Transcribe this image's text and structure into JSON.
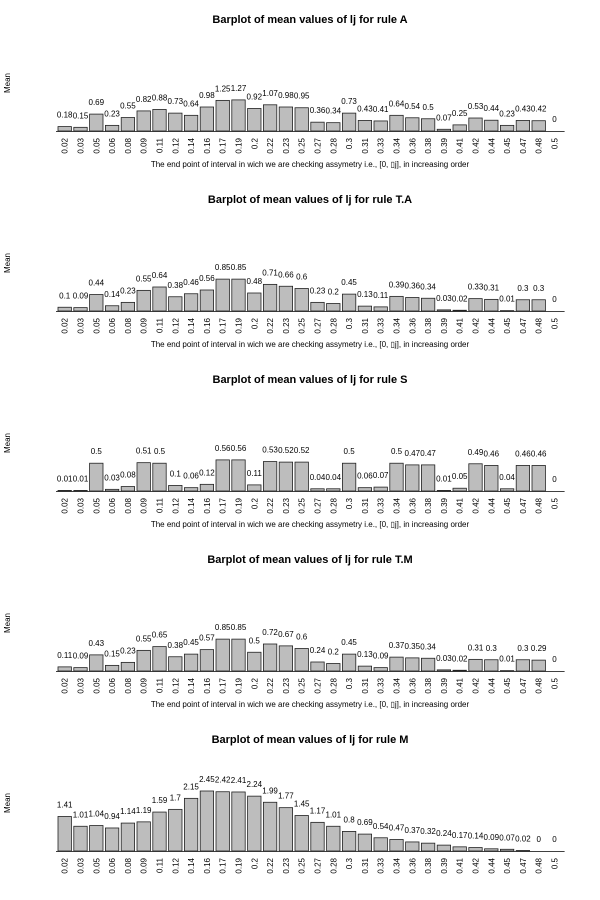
{
  "chart_data": [
    {
      "type": "bar",
      "title": "Barplot of mean values of lj for rule A",
      "ylabel": "Mean",
      "xlabel": "The end point of interval in wich we are checking assymetry i.e., [0, ▯j], in increasing order",
      "categories": [
        "0.02",
        "0.03",
        "0.05",
        "0.06",
        "0.08",
        "0.09",
        "0.11",
        "0.12",
        "0.14",
        "0.16",
        "0.17",
        "0.19",
        "0.2",
        "0.22",
        "0.23",
        "0.25",
        "0.27",
        "0.28",
        "0.3",
        "0.31",
        "0.33",
        "0.34",
        "0.36",
        "0.38",
        "0.39",
        "0.41",
        "0.42",
        "0.44",
        "0.45",
        "0.47",
        "0.48",
        "0.5"
      ],
      "values": [
        0.18,
        0.15,
        0.69,
        0.23,
        0.55,
        0.82,
        0.88,
        0.73,
        0.64,
        0.98,
        1.25,
        1.27,
        0.92,
        1.07,
        0.98,
        0.95,
        0.36,
        0.34,
        0.73,
        0.43,
        0.41,
        0.64,
        0.54,
        0.5,
        0.07,
        0.25,
        0.53,
        0.44,
        0.23,
        0.43,
        0.42,
        0
      ],
      "labels": [
        "0.18",
        "0.15",
        "0.69",
        "0.23",
        "0.55",
        "0.82",
        "0.88",
        "0.73",
        "0.64",
        "0.98",
        "1.25",
        "1.27",
        "0.92",
        "1.07",
        "0.98",
        "0.95",
        "0.36",
        "0.34",
        "0.73",
        "0.43",
        "0.41",
        "0.64",
        "0.54",
        "0.5",
        "0.07",
        "0.25",
        "0.53",
        "0.44",
        "0.23",
        "0.43",
        "0.42",
        "0"
      ],
      "ylim": [
        0,
        2.45
      ]
    },
    {
      "type": "bar",
      "title": "Barplot of mean values of lj for rule T.A",
      "ylabel": "Mean",
      "xlabel": "The end point of interval in wich we are checking assymetry i.e., [0, ▯j], in increasing order",
      "categories": [
        "0.02",
        "0.03",
        "0.05",
        "0.06",
        "0.08",
        "0.09",
        "0.11",
        "0.12",
        "0.14",
        "0.16",
        "0.17",
        "0.19",
        "0.2",
        "0.22",
        "0.23",
        "0.25",
        "0.27",
        "0.28",
        "0.3",
        "0.31",
        "0.33",
        "0.34",
        "0.36",
        "0.38",
        "0.39",
        "0.41",
        "0.42",
        "0.44",
        "0.45",
        "0.47",
        "0.48",
        "0.5"
      ],
      "values": [
        0.1,
        0.09,
        0.44,
        0.14,
        0.23,
        0.55,
        0.64,
        0.38,
        0.46,
        0.56,
        0.85,
        0.85,
        0.48,
        0.71,
        0.66,
        0.6,
        0.23,
        0.2,
        0.45,
        0.13,
        0.11,
        0.39,
        0.36,
        0.34,
        0.03,
        0.02,
        0.33,
        0.31,
        0.01,
        0.3,
        0.3,
        0
      ],
      "labels": [
        "0.1",
        "0.09",
        "0.44",
        "0.14",
        "0.23",
        "0.55",
        "0.64",
        "0.38",
        "0.46",
        "0.56",
        "0.85",
        "0.85",
        "0.48",
        "0.71",
        "0.66",
        "0.6",
        "0.23",
        "0.2",
        "0.45",
        "0.13",
        "0.11",
        "0.39",
        "0.36",
        "0.34",
        "0.03",
        "0.02",
        "0.33",
        "0.31",
        "0.01",
        "0.3",
        "0.3",
        "0"
      ],
      "ylim": [
        0,
        1.6
      ]
    },
    {
      "type": "bar",
      "title": "Barplot of mean values of lj for rule S",
      "ylabel": "Mean",
      "xlabel": "The end point of interval in wich we are checking assymetry i.e., [0, ▯j], in increasing order",
      "categories": [
        "0.02",
        "0.03",
        "0.05",
        "0.06",
        "0.08",
        "0.09",
        "0.11",
        "0.12",
        "0.14",
        "0.16",
        "0.17",
        "0.19",
        "0.2",
        "0.22",
        "0.23",
        "0.25",
        "0.27",
        "0.28",
        "0.3",
        "0.31",
        "0.33",
        "0.34",
        "0.36",
        "0.38",
        "0.39",
        "0.41",
        "0.42",
        "0.44",
        "0.45",
        "0.47",
        "0.48",
        "0.5"
      ],
      "values": [
        0.01,
        0.01,
        0.5,
        0.03,
        0.08,
        0.51,
        0.5,
        0.1,
        0.06,
        0.12,
        0.56,
        0.56,
        0.11,
        0.53,
        0.52,
        0.52,
        0.04,
        0.04,
        0.5,
        0.06,
        0.07,
        0.5,
        0.47,
        0.47,
        0.01,
        0.05,
        0.49,
        0.46,
        0.04,
        0.46,
        0.46,
        0
      ],
      "labels": [
        "0.01",
        "0.01",
        "0.5",
        "0.03",
        "0.08",
        "0.51",
        "0.5",
        "0.1",
        "0.06",
        "0.12",
        "0.56",
        "0.56",
        "0.11",
        "0.53",
        "0.52",
        "0.52",
        "0.04",
        "0.04",
        "0.5",
        "0.06",
        "0.07",
        "0.5",
        "0.47",
        "0.47",
        "0.01",
        "0.05",
        "0.49",
        "0.46",
        "0.04",
        "0.46",
        "0.46",
        "0"
      ],
      "ylim": [
        0,
        1.08
      ]
    },
    {
      "type": "bar",
      "title": "Barplot of mean values of lj for rule T.M",
      "ylabel": "Mean",
      "xlabel": "The end point of interval in wich we are checking assymetry i.e., [0, ▯j], in increasing order",
      "categories": [
        "0.02",
        "0.03",
        "0.05",
        "0.06",
        "0.08",
        "0.09",
        "0.11",
        "0.12",
        "0.14",
        "0.16",
        "0.17",
        "0.19",
        "0.2",
        "0.22",
        "0.23",
        "0.25",
        "0.27",
        "0.28",
        "0.3",
        "0.31",
        "0.33",
        "0.34",
        "0.36",
        "0.38",
        "0.39",
        "0.41",
        "0.42",
        "0.44",
        "0.45",
        "0.47",
        "0.48",
        "0.5"
      ],
      "values": [
        0.11,
        0.09,
        0.43,
        0.15,
        0.23,
        0.55,
        0.65,
        0.38,
        0.45,
        0.57,
        0.85,
        0.85,
        0.5,
        0.72,
        0.67,
        0.6,
        0.24,
        0.2,
        0.45,
        0.13,
        0.09,
        0.37,
        0.35,
        0.34,
        0.03,
        0.02,
        0.31,
        0.3,
        0.01,
        0.3,
        0.29,
        0
      ],
      "labels": [
        "0.11",
        "0.09",
        "0.43",
        "0.15",
        "0.23",
        "0.55",
        "0.65",
        "0.38",
        "0.45",
        "0.57",
        "0.85",
        "0.85",
        "0.5",
        "0.72",
        "0.67",
        "0.6",
        "0.24",
        "0.2",
        "0.45",
        "0.13",
        "0.09",
        "0.37",
        "0.35",
        "0.34",
        "0.03",
        "0.02",
        "0.31",
        "0.3",
        "0.01",
        "0.3",
        "0.29",
        "0"
      ],
      "ylim": [
        0,
        1.6
      ]
    },
    {
      "type": "bar",
      "title": "Barplot of mean values of lj for rule M",
      "ylabel": "Mean",
      "xlabel": "",
      "categories": [
        "0.02",
        "0.03",
        "0.05",
        "0.06",
        "0.08",
        "0.09",
        "0.11",
        "0.12",
        "0.14",
        "0.16",
        "0.17",
        "0.19",
        "0.2",
        "0.22",
        "0.23",
        "0.25",
        "0.27",
        "0.28",
        "0.3",
        "0.31",
        "0.33",
        "0.34",
        "0.36",
        "0.38",
        "0.39",
        "0.41",
        "0.42",
        "0.44",
        "0.45",
        "0.47",
        "0.48",
        "0.5"
      ],
      "values": [
        1.41,
        1.01,
        1.04,
        0.94,
        1.14,
        1.19,
        1.59,
        1.7,
        2.15,
        2.45,
        2.42,
        2.41,
        2.24,
        1.99,
        1.77,
        1.45,
        1.17,
        1.01,
        0.8,
        0.69,
        0.54,
        0.47,
        0.37,
        0.32,
        0.24,
        0.17,
        0.14,
        0.09,
        0.07,
        0.02,
        0,
        0
      ],
      "labels": [
        "1.41",
        "1.01",
        "1.04",
        "0.94",
        "1.14",
        "1.19",
        "1.59",
        "1.7",
        "2.15",
        "2.45",
        "2.42",
        "2.41",
        "2.24",
        "1.99",
        "1.77",
        "1.45",
        "1.17",
        "1.01",
        "0.8",
        "0.69",
        "0.54",
        "0.47",
        "0.37",
        "0.32",
        "0.24",
        "0.17",
        "0.14",
        "0.09",
        "0.07",
        "0.02",
        "0",
        "0"
      ],
      "ylim": [
        0,
        2.45
      ]
    }
  ]
}
